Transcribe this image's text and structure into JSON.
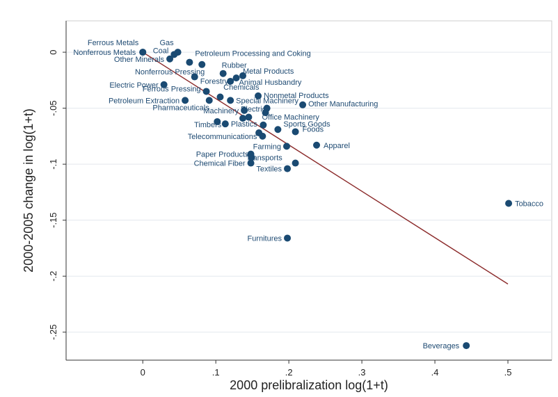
{
  "chart_data": {
    "type": "scatter",
    "xlabel": "2000 prelibralization log(1+t)",
    "ylabel": "2000-2005 change in log(1+t)",
    "xlim": [
      -0.105,
      0.56
    ],
    "ylim": [
      -0.275,
      0.028
    ],
    "x_ticks": [
      0,
      0.1,
      0.2,
      0.3,
      0.4,
      0.5
    ],
    "x_tick_labels": [
      "0",
      ".1",
      ".2",
      ".3",
      ".4",
      ".5"
    ],
    "y_ticks": [
      0,
      -0.05,
      -0.1,
      -0.15,
      -0.2,
      -0.25
    ],
    "y_tick_labels": [
      "0",
      "-.05",
      "-.1",
      "-.15",
      "-.2",
      "-.25"
    ],
    "grid": true,
    "marker_color": "#1a4a72",
    "line_color": "#8b2a2a",
    "fit_line": {
      "x": [
        0,
        0.5
      ],
      "y": [
        0,
        -0.207
      ]
    },
    "points": [
      {
        "label": "Ferrous Metals",
        "x": 0.0,
        "y": 0.0,
        "anchor": "end",
        "dx": -6,
        "dy": -10
      },
      {
        "label": "Nonferrous Metals",
        "x": 0.0,
        "y": 0.0,
        "anchor": "end",
        "dx": -10,
        "dy": 4
      },
      {
        "label": "Gas",
        "x": 0.048,
        "y": 0.0,
        "anchor": "middle",
        "dx": -16,
        "dy": -10
      },
      {
        "label": "Coal",
        "x": 0.043,
        "y": -0.002,
        "anchor": "end",
        "dx": -8,
        "dy": -2
      },
      {
        "label": "Other Minerals",
        "x": 0.037,
        "y": -0.006,
        "anchor": "end",
        "dx": -8,
        "dy": 4
      },
      {
        "label": "Petroleum Processing and Coking",
        "x": 0.064,
        "y": -0.009,
        "anchor": "start",
        "dx": 8,
        "dy": -9
      },
      {
        "label": "Nonferrous Pressing",
        "x": 0.081,
        "y": -0.011,
        "anchor": "end",
        "dx": 4,
        "dy": 14
      },
      {
        "label": "Rubber",
        "x": 0.11,
        "y": -0.019,
        "anchor": "middle",
        "dx": 16,
        "dy": -8
      },
      {
        "label": "Metal Products",
        "x": 0.137,
        "y": -0.021,
        "anchor": "start",
        "dx": 0,
        "dy": -3
      },
      {
        "label": "Forestry",
        "x": 0.071,
        "y": -0.022,
        "anchor": "start",
        "dx": 8,
        "dy": 10
      },
      {
        "label": "Animal Husbandry",
        "x": 0.128,
        "y": -0.023,
        "anchor": "start",
        "dx": 4,
        "dy": 10
      },
      {
        "label": "Electric Power",
        "x": 0.029,
        "y": -0.029,
        "anchor": "end",
        "dx": -8,
        "dy": 4
      },
      {
        "label": "Chemicals",
        "x": 0.12,
        "y": -0.026,
        "anchor": "start",
        "dx": -10,
        "dy": 12
      },
      {
        "label": "Ferrous Pressing",
        "x": 0.087,
        "y": -0.035,
        "anchor": "end",
        "dx": -8,
        "dy": 0
      },
      {
        "label": "Nonmetal Products",
        "x": 0.158,
        "y": -0.039,
        "anchor": "start",
        "dx": 8,
        "dy": 3
      },
      {
        "label": "Petroleum Extraction",
        "x": 0.058,
        "y": -0.043,
        "anchor": "end",
        "dx": -8,
        "dy": 4
      },
      {
        "label": "Pharmaceuticals",
        "x": 0.091,
        "y": -0.043,
        "anchor": "end",
        "dx": 0,
        "dy": 14
      },
      {
        "label": "",
        "x": 0.106,
        "y": -0.04,
        "anchor": "start",
        "dx": 0,
        "dy": 0
      },
      {
        "label": "Special Machinery",
        "x": 0.12,
        "y": -0.043,
        "anchor": "start",
        "dx": 8,
        "dy": 4
      },
      {
        "label": "Other Manufacturing",
        "x": 0.219,
        "y": -0.047,
        "anchor": "start",
        "dx": 8,
        "dy": 2
      },
      {
        "label": "Electrics",
        "x": 0.17,
        "y": -0.05,
        "anchor": "end",
        "dx": 4,
        "dy": 5
      },
      {
        "label": "Machinery",
        "x": 0.139,
        "y": -0.052,
        "anchor": "end",
        "dx": -8,
        "dy": 4
      },
      {
        "label": "Office Machinery",
        "x": 0.168,
        "y": -0.054,
        "anchor": "start",
        "dx": -5,
        "dy": 10
      },
      {
        "label": "",
        "x": 0.145,
        "y": -0.058,
        "anchor": "start",
        "dx": 0,
        "dy": 0
      },
      {
        "label": "",
        "x": 0.137,
        "y": -0.059,
        "anchor": "start",
        "dx": 0,
        "dy": 0
      },
      {
        "label": "Timbers",
        "x": 0.102,
        "y": -0.062,
        "anchor": "end",
        "dx": 6,
        "dy": 8
      },
      {
        "label": "Plastics",
        "x": 0.113,
        "y": -0.064,
        "anchor": "start",
        "dx": 8,
        "dy": 4
      },
      {
        "label": "",
        "x": 0.165,
        "y": -0.065,
        "anchor": "start",
        "dx": 0,
        "dy": 0
      },
      {
        "label": "Sports Goods",
        "x": 0.185,
        "y": -0.069,
        "anchor": "start",
        "dx": 8,
        "dy": -4
      },
      {
        "label": "Foods",
        "x": 0.209,
        "y": -0.071,
        "anchor": "start",
        "dx": 10,
        "dy": 0
      },
      {
        "label": "",
        "x": 0.159,
        "y": -0.072,
        "anchor": "start",
        "dx": 0,
        "dy": 0
      },
      {
        "label": "Telecommunications",
        "x": 0.164,
        "y": -0.075,
        "anchor": "end",
        "dx": -8,
        "dy": 4
      },
      {
        "label": "Farming",
        "x": 0.197,
        "y": -0.084,
        "anchor": "end",
        "dx": -8,
        "dy": 4
      },
      {
        "label": "Apparel",
        "x": 0.238,
        "y": -0.083,
        "anchor": "start",
        "dx": 10,
        "dy": 4
      },
      {
        "label": "Paper Products",
        "x": 0.148,
        "y": -0.091,
        "anchor": "end",
        "dx": -3,
        "dy": 4
      },
      {
        "label": "Transports",
        "x": 0.149,
        "y": -0.094,
        "anchor": "start",
        "dx": -8,
        "dy": 4
      },
      {
        "label": "Chemical Fiber",
        "x": 0.148,
        "y": -0.099,
        "anchor": "end",
        "dx": -8,
        "dy": 4
      },
      {
        "label": "",
        "x": 0.209,
        "y": -0.099,
        "anchor": "start",
        "dx": 0,
        "dy": 0
      },
      {
        "label": "Textiles",
        "x": 0.198,
        "y": -0.104,
        "anchor": "end",
        "dx": -8,
        "dy": 4
      },
      {
        "label": "Tobacco",
        "x": 0.501,
        "y": -0.135,
        "anchor": "start",
        "dx": 9,
        "dy": 4
      },
      {
        "label": "Furnitures",
        "x": 0.198,
        "y": -0.166,
        "anchor": "end",
        "dx": -8,
        "dy": 4
      },
      {
        "label": "Beverages",
        "x": 0.443,
        "y": -0.262,
        "anchor": "end",
        "dx": -10,
        "dy": 4
      }
    ]
  }
}
